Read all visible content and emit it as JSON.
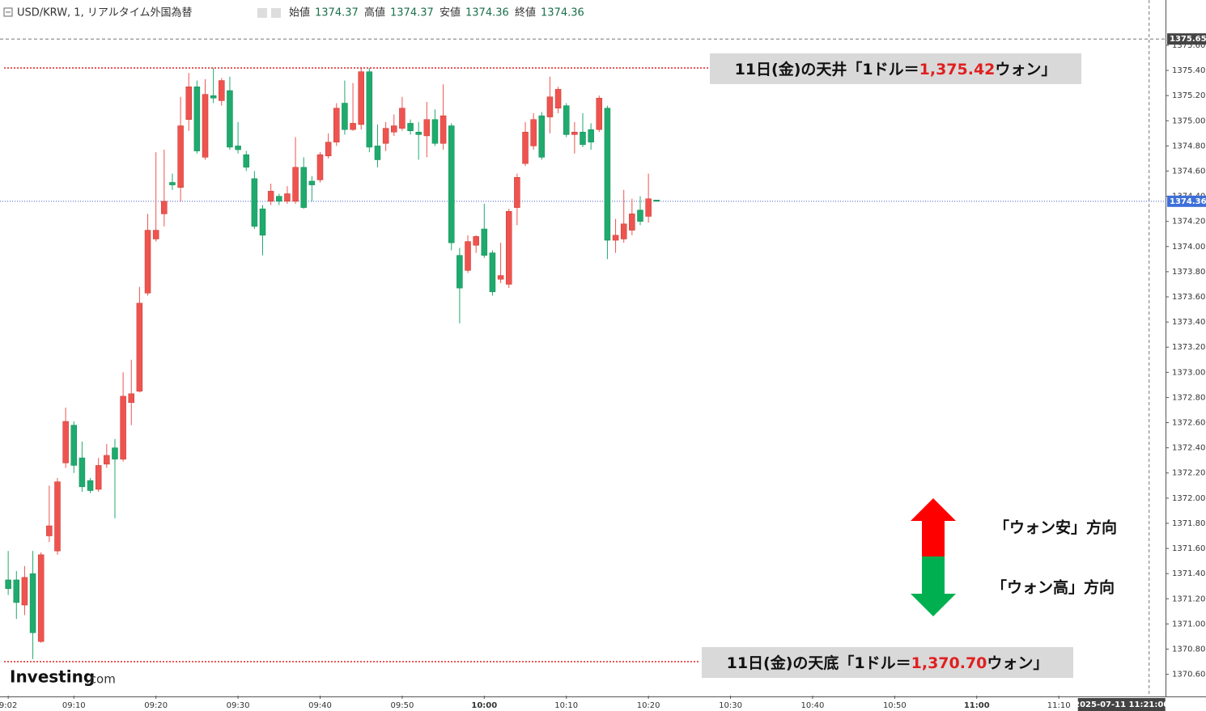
{
  "chart_data": {
    "type": "candlestick",
    "header": {
      "symbol": "USD/KRW, 1, リアルタイム外国為替",
      "open_label": "始値",
      "open": 1374.37,
      "high_label": "高値",
      "high": 1374.37,
      "low_label": "安値",
      "low": 1374.36,
      "close_label": "終値",
      "close": 1374.36
    },
    "x": [
      "09:02",
      "09:03",
      "09:04",
      "09:05",
      "09:06",
      "09:07",
      "09:08",
      "09:09",
      "09:10",
      "09:11",
      "09:12",
      "09:13",
      "09:14",
      "09:15",
      "09:16",
      "09:17",
      "09:18",
      "09:19",
      "09:20",
      "09:21",
      "09:22",
      "09:23",
      "09:24",
      "09:25",
      "09:26",
      "09:27",
      "09:28",
      "09:29",
      "09:30",
      "09:31",
      "09:32",
      "09:33",
      "09:34",
      "09:35",
      "09:36",
      "09:37",
      "09:38",
      "09:39",
      "09:40",
      "09:41",
      "09:42",
      "09:43",
      "09:44",
      "09:45",
      "09:46",
      "09:47",
      "09:48",
      "09:49",
      "09:50",
      "09:51",
      "09:52",
      "09:53",
      "09:54",
      "09:55",
      "09:56",
      "09:57",
      "09:58",
      "09:59",
      "10:00",
      "10:01",
      "10:02",
      "10:03",
      "10:04",
      "10:05",
      "10:06",
      "10:07",
      "10:08",
      "10:09",
      "10:10",
      "10:11",
      "10:12",
      "10:13",
      "10:14",
      "10:15",
      "10:16",
      "10:17",
      "10:18",
      "10:19",
      "10:20",
      "10:21"
    ],
    "open": [
      1371.35,
      1371.35,
      1371.15,
      1371.4,
      1370.86,
      1371.7,
      1371.58,
      1372.28,
      1372.58,
      1372.32,
      1372.14,
      1372.07,
      1372.27,
      1372.4,
      1372.31,
      1372.76,
      1372.85,
      1373.63,
      1374.06,
      1374.26,
      1374.51,
      1374.47,
      1375.01,
      1375.27,
      1374.71,
      1375.2,
      1375.16,
      1375.24,
      1374.8,
      1374.73,
      1374.54,
      1374.3,
      1374.36,
      1374.4,
      1374.36,
      1374.36,
      1374.63,
      1374.52,
      1374.53,
      1374.72,
      1374.83,
      1375.14,
      1374.93,
      1374.97,
      1375.39,
      1374.8,
      1374.82,
      1374.91,
      1374.94,
      1374.98,
      1374.91,
      1374.88,
      1375.01,
      1374.82,
      1374.96,
      1373.93,
      1373.81,
      1374.01,
      1374.14,
      1373.95,
      1373.74,
      1373.7,
      1374.31,
      1374.66,
      1374.8,
      1375.04,
      1375.03,
      1375.1,
      1375.12,
      1374.89,
      1374.91,
      1374.93,
      1374.93,
      1375.1,
      1374.05,
      1374.06,
      1374.13,
      1374.29,
      1374.24,
      1374.37
    ],
    "high": [
      1371.58,
      1371.42,
      1371.46,
      1371.58,
      1371.57,
      1372.1,
      1372.16,
      1372.72,
      1372.61,
      1372.45,
      1372.16,
      1372.32,
      1372.43,
      1372.47,
      1373.0,
      1373.1,
      1373.68,
      1374.26,
      1374.75,
      1374.77,
      1374.58,
      1375.19,
      1375.38,
      1375.32,
      1375.33,
      1375.42,
      1375.34,
      1375.35,
      1374.99,
      1374.76,
      1374.6,
      1374.33,
      1374.5,
      1374.42,
      1374.48,
      1374.87,
      1374.71,
      1374.56,
      1374.75,
      1374.9,
      1375.14,
      1375.32,
      1375.3,
      1375.42,
      1375.42,
      1374.97,
      1374.99,
      1375.05,
      1375.19,
      1375.01,
      1374.99,
      1375.15,
      1375.09,
      1375.29,
      1374.98,
      1373.99,
      1374.09,
      1374.09,
      1374.34,
      1373.97,
      1374.03,
      1374.3,
      1374.58,
      1374.99,
      1375.06,
      1375.07,
      1375.35,
      1375.27,
      1375.14,
      1374.99,
      1375.06,
      1374.98,
      1375.2,
      1375.12,
      1374.22,
      1374.45,
      1374.38,
      1374.4,
      1374.58,
      1374.37
    ],
    "low": [
      1371.23,
      1371.04,
      1371.07,
      1370.72,
      1370.85,
      1371.65,
      1371.55,
      1372.24,
      1372.2,
      1372.05,
      1372.04,
      1372.05,
      1372.24,
      1371.84,
      1372.29,
      1372.58,
      1372.84,
      1373.61,
      1374.04,
      1374.16,
      1374.45,
      1374.36,
      1374.92,
      1374.74,
      1374.69,
      1375.14,
      1375.12,
      1374.77,
      1374.74,
      1374.6,
      1374.14,
      1373.93,
      1374.33,
      1374.33,
      1374.34,
      1374.34,
      1374.3,
      1374.36,
      1374.51,
      1374.7,
      1374.8,
      1374.89,
      1374.92,
      1374.93,
      1374.75,
      1374.63,
      1374.76,
      1374.88,
      1374.92,
      1374.89,
      1374.69,
      1374.71,
      1374.8,
      1374.77,
      1373.97,
      1373.39,
      1373.79,
      1373.95,
      1373.91,
      1373.61,
      1373.71,
      1373.67,
      1374.17,
      1374.64,
      1374.77,
      1374.69,
      1374.9,
      1375.06,
      1374.87,
      1374.74,
      1374.79,
      1374.77,
      1374.91,
      1373.9,
      1373.95,
      1374.03,
      1374.09,
      1374.17,
      1374.19,
      1374.36
    ],
    "close": [
      1371.28,
      1371.17,
      1371.37,
      1370.93,
      1371.55,
      1371.78,
      1372.13,
      1372.61,
      1372.26,
      1372.09,
      1372.06,
      1372.26,
      1372.34,
      1372.31,
      1372.81,
      1372.83,
      1373.55,
      1374.13,
      1374.13,
      1374.36,
      1374.49,
      1374.96,
      1375.27,
      1374.76,
      1375.21,
      1375.18,
      1375.32,
      1374.79,
      1374.77,
      1374.63,
      1374.16,
      1374.09,
      1374.44,
      1374.36,
      1374.42,
      1374.63,
      1374.31,
      1374.49,
      1374.73,
      1374.83,
      1375.1,
      1374.93,
      1374.98,
      1375.39,
      1374.79,
      1374.69,
      1374.94,
      1374.96,
      1375.1,
      1374.92,
      1374.89,
      1375.01,
      1374.82,
      1375.04,
      1374.03,
      1373.67,
      1374.04,
      1374.08,
      1373.93,
      1373.64,
      1373.77,
      1374.28,
      1374.55,
      1374.91,
      1375.01,
      1374.71,
      1375.19,
      1375.25,
      1374.89,
      1374.91,
      1374.81,
      1374.83,
      1375.18,
      1374.05,
      1374.09,
      1374.18,
      1374.26,
      1374.2,
      1374.38,
      1374.36
    ],
    "up_color": "#ef5350",
    "down_color": "#1faa6e",
    "xlim": [
      "09:01",
      "11:23"
    ],
    "xticks": [
      {
        "value": "09:02",
        "label": "9:02"
      },
      "09:10",
      "09:20",
      "09:30",
      "09:40",
      "09:50",
      "10:00",
      "10:10",
      "10:20",
      "10:30",
      "10:40",
      "10:50",
      "11:00",
      "11:10"
    ],
    "ylim": [
      1370.43,
      1375.96
    ],
    "yticks": [
      {
        "value": 1370.6,
        "label": "1370.60"
      },
      {
        "value": 1370.8,
        "label": "1370.80"
      },
      {
        "value": 1371.0,
        "label": "1371.00"
      },
      {
        "value": 1371.2,
        "label": "1371.20"
      },
      {
        "value": 1371.4,
        "label": "1371.40"
      },
      {
        "value": 1371.6,
        "label": "1371.60"
      },
      {
        "value": 1371.8,
        "label": "1371.80"
      },
      {
        "value": 1372.0,
        "label": "1372.00"
      },
      {
        "value": 1372.2,
        "label": "1372.20"
      },
      {
        "value": 1372.4,
        "label": "1372.40"
      },
      {
        "value": 1372.6,
        "label": "1372.60"
      },
      {
        "value": 1372.8,
        "label": "1372.80"
      },
      {
        "value": 1373.0,
        "label": "1373.00"
      },
      {
        "value": 1373.2,
        "label": "1373.20"
      },
      {
        "value": 1373.4,
        "label": "1373.40"
      },
      {
        "value": 1373.6,
        "label": "1373.60"
      },
      {
        "value": 1373.8,
        "label": "1373.80"
      },
      {
        "value": 1374.0,
        "label": "1374.00"
      },
      {
        "value": 1374.2,
        "label": "1374.20"
      },
      {
        "value": 1374.4,
        "label": "1374.40"
      },
      {
        "value": 1374.6,
        "label": "1374.60"
      },
      {
        "value": 1374.8,
        "label": "1374.80"
      },
      {
        "value": 1375.0,
        "label": "1375.00"
      },
      {
        "value": 1375.2,
        "label": "1375.20"
      },
      {
        "value": 1375.4,
        "label": "1375.40"
      },
      {
        "value": 1375.6,
        "label": "1375.60"
      }
    ],
    "last_price": 1374.36,
    "crosshair": {
      "price": 1375.65,
      "time": "2025-07-11 11:21:00"
    },
    "levels": [
      {
        "prefix": "11日(金)の天井「1ドル＝",
        "value": 1375.42,
        "value_label": "1,375.42",
        "suffix": "ウォン」",
        "color": "#e02020"
      },
      {
        "prefix": "11日(金)の天底「1ドル＝",
        "value": 1370.7,
        "value_label": "1,370.70",
        "suffix": "ウォン」",
        "color": "#e02020"
      }
    ],
    "arrow_labels": {
      "up": "「ウォン安」方向",
      "down": "「ウォン高」方向"
    },
    "logo": {
      "main": "Investing",
      "suffix": ".com"
    }
  }
}
